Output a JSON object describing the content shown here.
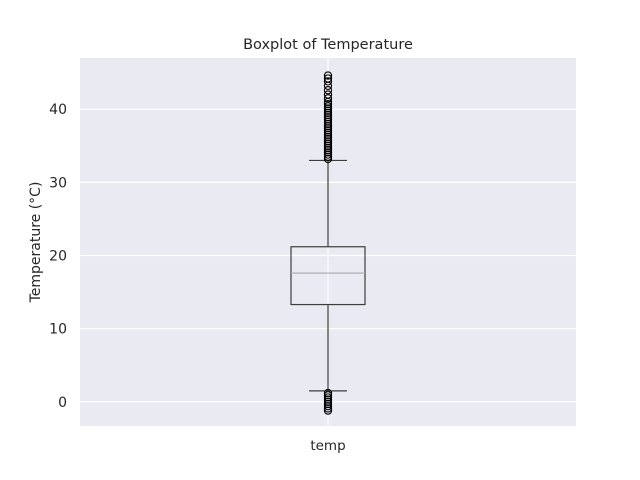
{
  "chart_data": {
    "type": "box",
    "title": "Boxplot of Temperature",
    "xlabel": "",
    "ylabel": "Temperature (°C)",
    "categories": [
      "temp"
    ],
    "ylim": [
      -3.3,
      47
    ],
    "yticks": [
      0,
      10,
      20,
      30,
      40
    ],
    "grid": true,
    "box": {
      "whisker_low": 1.5,
      "q1": 13.3,
      "median": 17.6,
      "q3": 21.2,
      "whisker_high": 33.0
    },
    "outliers_high": [
      33.2,
      33.5,
      33.8,
      34.1,
      34.4,
      34.7,
      35.0,
      35.3,
      35.6,
      35.9,
      36.2,
      36.5,
      36.8,
      37.1,
      37.4,
      37.7,
      38.0,
      38.3,
      38.6,
      38.9,
      39.2,
      39.5,
      39.8,
      40.1,
      40.4,
      40.7,
      41.0,
      41.5,
      42.0,
      42.6,
      43.2,
      43.8,
      44.2,
      44.6
    ],
    "outliers_low": [
      1.2,
      0.9,
      0.6,
      0.3,
      0.0,
      -0.3,
      -0.6,
      -0.9,
      -1.2
    ]
  }
}
